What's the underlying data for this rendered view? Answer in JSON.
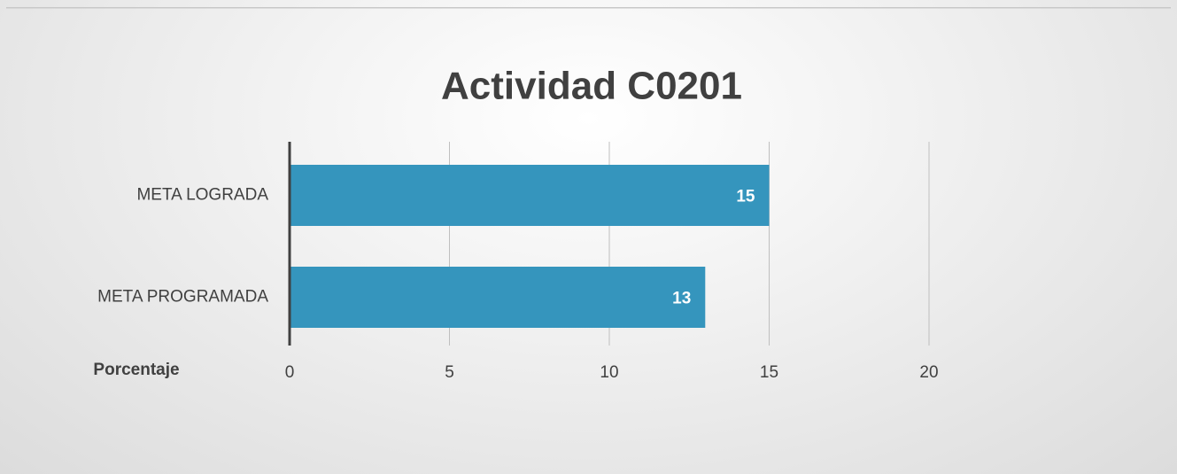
{
  "chart_data": {
    "type": "hbar",
    "title": "Actividad C0201",
    "x_label": "Porcentaje",
    "categories": [
      "META LOGRADA",
      "META PROGRAMADA"
    ],
    "values": [
      15,
      13
    ],
    "color": "#3595bd",
    "xlim": [
      0,
      20
    ],
    "xticks": [
      0,
      5,
      10,
      15,
      20
    ],
    "grid": true
  }
}
